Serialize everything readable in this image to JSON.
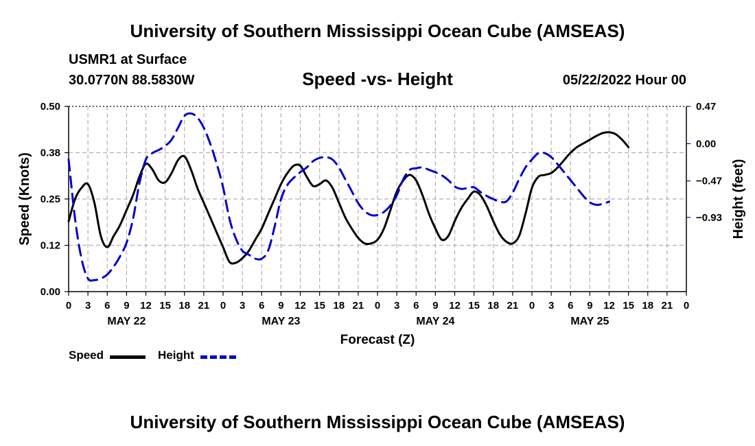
{
  "page": {
    "header_title": "University of Southern Mississippi Ocean Cube (AMSEAS)",
    "station": "USMR1 at Surface",
    "coords": "30.0770N  88.5830W",
    "chart_title": "Speed -vs- Height",
    "date": "05/22/2022 Hour 00",
    "footer_title": "University of Southern Mississippi Ocean Cube (AMSEAS)",
    "legend": {
      "speed_label": "Speed",
      "height_label": "Height"
    }
  },
  "chart_data": {
    "type": "line",
    "title": "Speed -vs- Height",
    "xlabel": "Forecast (Z)",
    "ylabel_left": "Speed (Knots)",
    "ylabel_right": "Height (feet)",
    "x_range_hours": [
      0,
      96
    ],
    "x_ticks": [
      0,
      3,
      6,
      9,
      12,
      15,
      18,
      21,
      24,
      27,
      30,
      33,
      36,
      39,
      42,
      45,
      48,
      51,
      54,
      57,
      60,
      63,
      66,
      69,
      72,
      75,
      78,
      81,
      84,
      87,
      90,
      93,
      96
    ],
    "x_tick_labels": [
      "0",
      "3",
      "6",
      "9",
      "12",
      "15",
      "18",
      "21",
      "0",
      "3",
      "6",
      "9",
      "12",
      "15",
      "18",
      "21",
      "0",
      "3",
      "6",
      "9",
      "12",
      "15",
      "18",
      "21",
      "0",
      "3",
      "6",
      "9",
      "12",
      "15",
      "18",
      "21",
      "0"
    ],
    "day_labels": [
      {
        "hour": 9,
        "label": "MAY 22"
      },
      {
        "hour": 33,
        "label": "MAY 23"
      },
      {
        "hour": 57,
        "label": "MAY 24"
      },
      {
        "hour": 81,
        "label": "MAY 25"
      }
    ],
    "y_left": {
      "range": [
        0,
        0.5
      ],
      "ticks": [
        0,
        0.125,
        0.25,
        0.375,
        0.5
      ],
      "tick_labels": [
        "0.00",
        "0.12",
        "0.25",
        "0.38",
        "0.50"
      ]
    },
    "y_right": {
      "range": [
        -1.865,
        0.47
      ],
      "ticks": [
        -0.93,
        -0.47,
        0.0,
        0.47
      ],
      "tick_labels": [
        "−0.93",
        "−0.47",
        "0.00",
        "0.47"
      ]
    },
    "grid": true,
    "series": [
      {
        "name": "Speed",
        "axis": "left",
        "color": "#000000",
        "dash": "solid",
        "points": [
          [
            0,
            0.19
          ],
          [
            1,
            0.25
          ],
          [
            2,
            0.28
          ],
          [
            3,
            0.29
          ],
          [
            4,
            0.24
          ],
          [
            5,
            0.15
          ],
          [
            6,
            0.12
          ],
          [
            7,
            0.15
          ],
          [
            8,
            0.18
          ],
          [
            9,
            0.22
          ],
          [
            10,
            0.26
          ],
          [
            11,
            0.31
          ],
          [
            12,
            0.345
          ],
          [
            13,
            0.33
          ],
          [
            14,
            0.3
          ],
          [
            15,
            0.295
          ],
          [
            16,
            0.32
          ],
          [
            17,
            0.355
          ],
          [
            18,
            0.365
          ],
          [
            19,
            0.33
          ],
          [
            20,
            0.28
          ],
          [
            21,
            0.24
          ],
          [
            22,
            0.2
          ],
          [
            23,
            0.16
          ],
          [
            24,
            0.12
          ],
          [
            25,
            0.08
          ],
          [
            26,
            0.078
          ],
          [
            27,
            0.09
          ],
          [
            28,
            0.11
          ],
          [
            29,
            0.14
          ],
          [
            30,
            0.17
          ],
          [
            31,
            0.21
          ],
          [
            32,
            0.25
          ],
          [
            33,
            0.29
          ],
          [
            34,
            0.32
          ],
          [
            35,
            0.34
          ],
          [
            36,
            0.34
          ],
          [
            37,
            0.31
          ],
          [
            38,
            0.285
          ],
          [
            39,
            0.29
          ],
          [
            40,
            0.3
          ],
          [
            41,
            0.28
          ],
          [
            42,
            0.24
          ],
          [
            43,
            0.2
          ],
          [
            44,
            0.17
          ],
          [
            45,
            0.145
          ],
          [
            46,
            0.13
          ],
          [
            47,
            0.13
          ],
          [
            48,
            0.14
          ],
          [
            49,
            0.17
          ],
          [
            50,
            0.22
          ],
          [
            51,
            0.27
          ],
          [
            52,
            0.3
          ],
          [
            53,
            0.315
          ],
          [
            54,
            0.3
          ],
          [
            55,
            0.26
          ],
          [
            56,
            0.21
          ],
          [
            57,
            0.17
          ],
          [
            58,
            0.14
          ],
          [
            59,
            0.15
          ],
          [
            60,
            0.19
          ],
          [
            61,
            0.225
          ],
          [
            62,
            0.25
          ],
          [
            63,
            0.27
          ],
          [
            64,
            0.26
          ],
          [
            65,
            0.23
          ],
          [
            66,
            0.19
          ],
          [
            67,
            0.155
          ],
          [
            68,
            0.135
          ],
          [
            69,
            0.13
          ],
          [
            70,
            0.15
          ],
          [
            71,
            0.21
          ],
          [
            72,
            0.28
          ],
          [
            73,
            0.31
          ],
          [
            74,
            0.315
          ],
          [
            75,
            0.32
          ],
          [
            76,
            0.335
          ],
          [
            77,
            0.355
          ],
          [
            78,
            0.375
          ],
          [
            79,
            0.39
          ],
          [
            80,
            0.4
          ],
          [
            81,
            0.41
          ],
          [
            82,
            0.42
          ],
          [
            83,
            0.428
          ],
          [
            84,
            0.43
          ],
          [
            85,
            0.425
          ],
          [
            86,
            0.41
          ],
          [
            87,
            0.39
          ]
        ]
      },
      {
        "name": "Height",
        "axis": "right",
        "color": "#0000cc",
        "dash": "dashed",
        "points": [
          [
            0,
            -0.2
          ],
          [
            1,
            -0.95
          ],
          [
            2,
            -1.45
          ],
          [
            3,
            -1.7
          ],
          [
            4,
            -1.72
          ],
          [
            5,
            -1.7
          ],
          [
            6,
            -1.65
          ],
          [
            7,
            -1.55
          ],
          [
            8,
            -1.42
          ],
          [
            9,
            -1.25
          ],
          [
            10,
            -0.95
          ],
          [
            11,
            -0.5
          ],
          [
            12,
            -0.2
          ],
          [
            13,
            -0.12
          ],
          [
            14,
            -0.08
          ],
          [
            15,
            -0.03
          ],
          [
            16,
            0.05
          ],
          [
            17,
            0.2
          ],
          [
            18,
            0.35
          ],
          [
            19,
            0.38
          ],
          [
            20,
            0.33
          ],
          [
            21,
            0.2
          ],
          [
            22,
            0.0
          ],
          [
            23,
            -0.25
          ],
          [
            24,
            -0.55
          ],
          [
            25,
            -0.95
          ],
          [
            26,
            -1.2
          ],
          [
            27,
            -1.35
          ],
          [
            28,
            -1.4
          ],
          [
            29,
            -1.45
          ],
          [
            30,
            -1.45
          ],
          [
            31,
            -1.35
          ],
          [
            32,
            -1.05
          ],
          [
            33,
            -0.7
          ],
          [
            34,
            -0.52
          ],
          [
            35,
            -0.43
          ],
          [
            36,
            -0.36
          ],
          [
            37,
            -0.3
          ],
          [
            38,
            -0.22
          ],
          [
            39,
            -0.18
          ],
          [
            40,
            -0.17
          ],
          [
            41,
            -0.2
          ],
          [
            42,
            -0.3
          ],
          [
            43,
            -0.45
          ],
          [
            44,
            -0.6
          ],
          [
            45,
            -0.75
          ],
          [
            46,
            -0.85
          ],
          [
            47,
            -0.9
          ],
          [
            48,
            -0.9
          ],
          [
            49,
            -0.86
          ],
          [
            50,
            -0.78
          ],
          [
            51,
            -0.65
          ],
          [
            52,
            -0.45
          ],
          [
            53,
            -0.33
          ],
          [
            54,
            -0.31
          ],
          [
            55,
            -0.3
          ],
          [
            56,
            -0.33
          ],
          [
            57,
            -0.36
          ],
          [
            58,
            -0.4
          ],
          [
            59,
            -0.46
          ],
          [
            60,
            -0.54
          ],
          [
            61,
            -0.57
          ],
          [
            62,
            -0.56
          ],
          [
            63,
            -0.55
          ],
          [
            64,
            -0.61
          ],
          [
            65,
            -0.66
          ],
          [
            66,
            -0.7
          ],
          [
            67,
            -0.73
          ],
          [
            68,
            -0.73
          ],
          [
            69,
            -0.62
          ],
          [
            70,
            -0.45
          ],
          [
            71,
            -0.3
          ],
          [
            72,
            -0.2
          ],
          [
            73,
            -0.12
          ],
          [
            74,
            -0.12
          ],
          [
            75,
            -0.17
          ],
          [
            76,
            -0.26
          ],
          [
            77,
            -0.36
          ],
          [
            78,
            -0.46
          ],
          [
            79,
            -0.56
          ],
          [
            80,
            -0.66
          ],
          [
            81,
            -0.74
          ],
          [
            82,
            -0.77
          ],
          [
            83,
            -0.76
          ],
          [
            84,
            -0.73
          ]
        ]
      }
    ]
  }
}
